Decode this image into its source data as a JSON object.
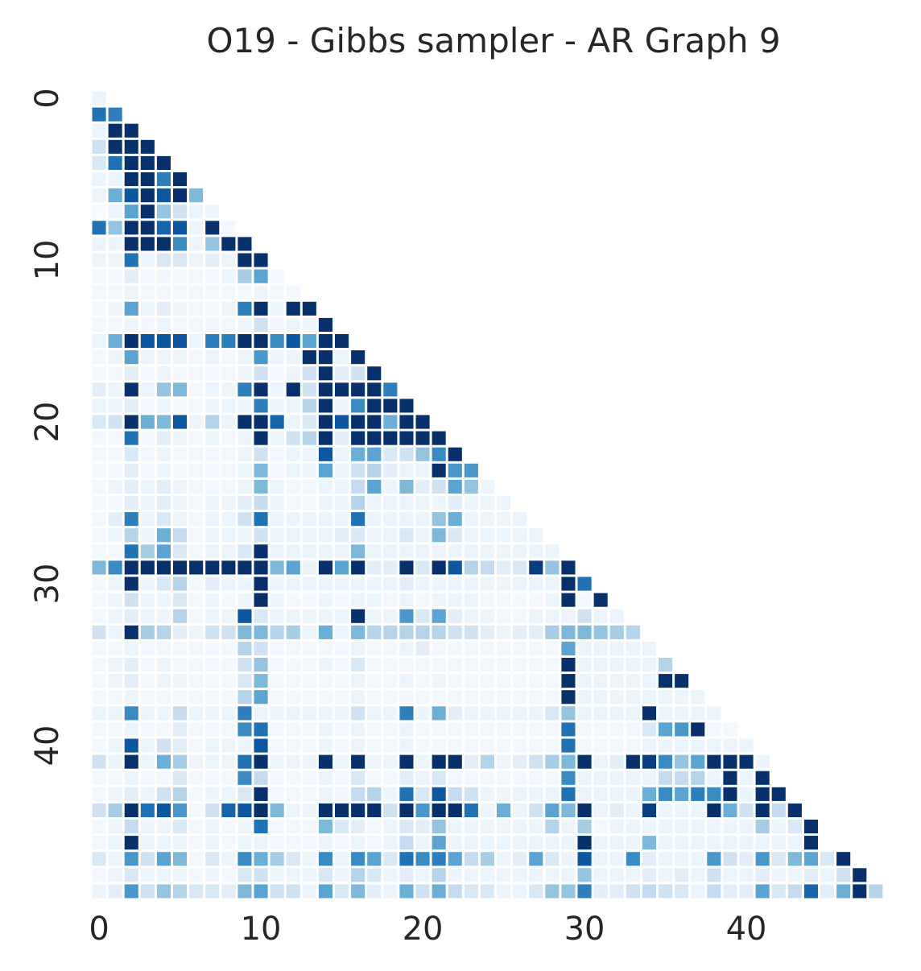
{
  "chart_data": {
    "type": "heatmap",
    "title": "O19 - Gibbs sampler - AR Graph 9",
    "xlabel": "",
    "ylabel": "",
    "n": 49,
    "mask": "upper-triangle",
    "x_ticks": [
      0,
      10,
      20,
      30,
      40
    ],
    "y_ticks": [
      0,
      10,
      20,
      30,
      40
    ],
    "colormap": "Blues",
    "value_range": [
      0,
      1
    ],
    "grid_line_color": "#ffffff",
    "rows": [
      [
        0.05
      ],
      [
        0.75,
        0.7
      ],
      [
        0.05,
        1.0,
        1.0
      ],
      [
        0.2,
        1.0,
        1.0,
        1.0
      ],
      [
        0.15,
        0.75,
        1.0,
        1.0,
        1.0
      ],
      [
        0.05,
        0.05,
        1.0,
        1.0,
        0.7,
        1.0
      ],
      [
        0.05,
        0.5,
        0.85,
        1.0,
        0.85,
        1.0,
        0.45
      ],
      [
        0.0,
        0.05,
        0.55,
        1.0,
        0.4,
        0.2,
        0.05,
        0.05
      ],
      [
        0.75,
        0.4,
        1.0,
        1.0,
        0.8,
        0.85,
        0.05,
        1.0,
        0.02
      ],
      [
        0.05,
        0.05,
        1.0,
        1.0,
        1.0,
        0.65,
        0.05,
        0.4,
        1.0,
        1.0
      ],
      [
        0.05,
        0.05,
        0.75,
        0.05,
        0.15,
        0.15,
        0.05,
        0.1,
        0.05,
        1.0,
        1.0
      ],
      [
        0.02,
        0.02,
        0.1,
        0.02,
        0.02,
        0.02,
        0.02,
        0.02,
        0.05,
        0.35,
        0.55,
        0.02
      ],
      [
        0.02,
        0.02,
        0.05,
        0.02,
        0.02,
        0.02,
        0.02,
        0.02,
        0.02,
        0.02,
        0.05,
        0.02,
        0.02
      ],
      [
        0.02,
        0.05,
        0.55,
        0.05,
        0.1,
        0.05,
        0.02,
        0.02,
        0.05,
        0.7,
        1.0,
        0.05,
        1.0,
        1.0
      ],
      [
        0.02,
        0.02,
        0.05,
        0.02,
        0.05,
        0.02,
        0.02,
        0.02,
        0.02,
        0.05,
        0.2,
        0.02,
        0.05,
        0.05,
        1.0
      ],
      [
        0.05,
        0.5,
        1.0,
        0.85,
        0.85,
        0.85,
        0.05,
        0.7,
        0.7,
        1.0,
        1.0,
        0.65,
        0.85,
        0.55,
        1.0,
        1.0
      ],
      [
        0.02,
        0.05,
        0.55,
        0.05,
        0.05,
        0.05,
        0.02,
        0.05,
        0.02,
        0.05,
        0.6,
        0.05,
        0.05,
        1.0,
        1.0,
        0.05,
        1.0
      ],
      [
        0.02,
        0.02,
        0.1,
        0.02,
        0.05,
        0.02,
        0.02,
        0.02,
        0.02,
        0.05,
        0.2,
        0.02,
        0.05,
        0.2,
        1.0,
        0.1,
        0.2,
        1.0
      ],
      [
        0.1,
        0.05,
        1.0,
        0.05,
        0.4,
        0.45,
        0.02,
        0.05,
        0.05,
        0.7,
        1.0,
        0.05,
        1.0,
        0.2,
        1.0,
        1.0,
        1.0,
        1.0,
        0.7
      ],
      [
        0.05,
        0.05,
        0.1,
        0.02,
        0.05,
        0.02,
        0.02,
        0.05,
        0.05,
        0.05,
        0.7,
        0.05,
        0.05,
        0.3,
        1.0,
        0.05,
        0.65,
        1.0,
        1.0,
        1.0
      ],
      [
        0.15,
        0.2,
        1.0,
        0.5,
        0.45,
        0.85,
        0.05,
        0.3,
        0.05,
        1.0,
        1.0,
        0.8,
        0.05,
        0.15,
        1.0,
        0.85,
        1.0,
        1.0,
        0.5,
        1.0,
        1.0
      ],
      [
        0.02,
        0.02,
        0.75,
        0.02,
        0.1,
        0.05,
        0.02,
        0.05,
        0.02,
        0.05,
        1.0,
        0.05,
        0.2,
        0.3,
        1.0,
        0.1,
        1.0,
        1.0,
        1.0,
        1.0,
        1.0,
        1.0
      ],
      [
        0.02,
        0.02,
        0.15,
        0.02,
        0.05,
        0.02,
        0.02,
        0.02,
        0.02,
        0.05,
        0.2,
        0.02,
        0.05,
        0.05,
        0.85,
        0.05,
        0.5,
        0.55,
        0.15,
        0.2,
        0.4,
        0.65,
        1.0
      ],
      [
        0.02,
        0.02,
        0.1,
        0.02,
        0.05,
        0.02,
        0.02,
        0.02,
        0.02,
        0.05,
        0.45,
        0.02,
        0.05,
        0.05,
        0.55,
        0.05,
        0.2,
        0.3,
        0.1,
        0.05,
        0.05,
        1.0,
        0.6,
        0.6
      ],
      [
        0.02,
        0.05,
        0.1,
        0.05,
        0.1,
        0.05,
        0.02,
        0.02,
        0.02,
        0.05,
        0.45,
        0.05,
        0.02,
        0.02,
        0.05,
        0.05,
        0.25,
        0.55,
        0.05,
        0.45,
        0.1,
        0.2,
        0.55,
        0.4,
        0.05
      ],
      [
        0.02,
        0.02,
        0.1,
        0.05,
        0.1,
        0.05,
        0.02,
        0.05,
        0.05,
        0.1,
        0.25,
        0.05,
        0.02,
        0.02,
        0.05,
        0.05,
        0.3,
        0.05,
        0.05,
        0.05,
        0.05,
        0.05,
        0.1,
        0.05,
        0.05,
        0.05
      ],
      [
        0.02,
        0.1,
        0.7,
        0.05,
        0.15,
        0.05,
        0.02,
        0.05,
        0.05,
        0.2,
        0.75,
        0.05,
        0.05,
        0.05,
        0.05,
        0.05,
        0.75,
        0.05,
        0.05,
        0.05,
        0.05,
        0.4,
        0.5,
        0.05,
        0.05,
        0.05,
        0.05
      ],
      [
        0.02,
        0.05,
        0.3,
        0.05,
        0.5,
        0.25,
        0.02,
        0.05,
        0.05,
        0.05,
        0.2,
        0.05,
        0.05,
        0.05,
        0.05,
        0.1,
        0.15,
        0.05,
        0.05,
        0.15,
        0.05,
        0.45,
        0.15,
        0.05,
        0.05,
        0.05,
        0.05,
        0.05
      ],
      [
        0.02,
        0.02,
        0.75,
        0.35,
        0.55,
        0.15,
        0.02,
        0.05,
        0.05,
        0.15,
        1.0,
        0.05,
        0.05,
        0.05,
        0.05,
        0.05,
        0.45,
        0.05,
        0.05,
        0.05,
        0.05,
        0.05,
        0.05,
        0.05,
        0.05,
        0.05,
        0.05,
        0.05,
        0.05
      ],
      [
        0.45,
        0.65,
        1.0,
        1.0,
        1.0,
        1.0,
        1.0,
        1.0,
        1.0,
        1.0,
        1.0,
        0.45,
        0.55,
        0.05,
        1.0,
        0.55,
        1.0,
        0.1,
        0.1,
        1.0,
        0.15,
        1.0,
        0.85,
        0.3,
        0.25,
        0.1,
        0.15,
        0.95,
        0.4,
        1.0
      ],
      [
        0.02,
        0.05,
        1.0,
        0.05,
        0.15,
        0.3,
        0.02,
        0.1,
        0.05,
        0.05,
        1.0,
        0.05,
        0.05,
        0.05,
        0.05,
        0.05,
        0.05,
        0.05,
        0.05,
        0.1,
        0.05,
        0.05,
        0.05,
        0.05,
        0.05,
        0.05,
        0.05,
        0.05,
        0.05,
        1.0,
        0.75
      ],
      [
        0.02,
        0.05,
        0.2,
        0.05,
        0.05,
        0.15,
        0.02,
        0.05,
        0.02,
        0.05,
        1.0,
        0.05,
        0.02,
        0.02,
        0.05,
        0.02,
        0.05,
        0.05,
        0.02,
        0.05,
        0.02,
        0.05,
        0.05,
        0.05,
        0.02,
        0.02,
        0.02,
        0.02,
        0.05,
        1.0,
        0.02,
        1.0
      ],
      [
        0.02,
        0.05,
        0.1,
        0.05,
        0.05,
        0.3,
        0.02,
        0.05,
        0.05,
        0.85,
        0.15,
        0.05,
        0.05,
        0.05,
        0.05,
        0.05,
        1.0,
        0.05,
        0.05,
        0.6,
        0.15,
        0.55,
        0.1,
        0.05,
        0.05,
        0.02,
        0.02,
        0.05,
        0.05,
        0.05,
        0.2,
        0.05,
        0.05
      ],
      [
        0.2,
        0.05,
        1.0,
        0.35,
        0.3,
        0.1,
        0.05,
        0.2,
        0.2,
        0.45,
        0.45,
        0.3,
        0.35,
        0.05,
        0.5,
        0.05,
        0.45,
        0.3,
        0.3,
        0.3,
        0.3,
        0.3,
        0.2,
        0.2,
        0.1,
        0.05,
        0.1,
        0.1,
        0.35,
        0.45,
        0.45,
        0.4,
        0.35,
        0.3
      ],
      [
        0.02,
        0.02,
        0.05,
        0.02,
        0.02,
        0.02,
        0.02,
        0.02,
        0.02,
        0.3,
        0.2,
        0.02,
        0.02,
        0.02,
        0.02,
        0.02,
        0.05,
        0.02,
        0.02,
        0.05,
        0.1,
        0.02,
        0.02,
        0.02,
        0.02,
        0.02,
        0.02,
        0.02,
        0.02,
        0.55,
        0.05,
        0.05,
        0.05,
        0.05,
        0.05
      ],
      [
        0.02,
        0.05,
        0.1,
        0.02,
        0.05,
        0.02,
        0.02,
        0.02,
        0.02,
        0.2,
        0.4,
        0.02,
        0.02,
        0.02,
        0.05,
        0.02,
        0.15,
        0.02,
        0.02,
        0.02,
        0.02,
        0.02,
        0.02,
        0.02,
        0.02,
        0.02,
        0.02,
        0.02,
        0.02,
        1.0,
        0.05,
        0.05,
        0.05,
        0.05,
        0.05,
        0.3
      ],
      [
        0.02,
        0.05,
        0.1,
        0.02,
        0.05,
        0.05,
        0.02,
        0.02,
        0.02,
        0.15,
        0.45,
        0.02,
        0.02,
        0.02,
        0.02,
        0.02,
        0.05,
        0.02,
        0.02,
        0.05,
        0.02,
        0.05,
        0.02,
        0.02,
        0.02,
        0.02,
        0.02,
        0.02,
        0.02,
        1.0,
        0.05,
        0.05,
        0.05,
        0.05,
        0.05,
        1.0,
        1.0
      ],
      [
        0.02,
        0.02,
        0.05,
        0.02,
        0.02,
        0.02,
        0.02,
        0.02,
        0.02,
        0.3,
        0.55,
        0.02,
        0.02,
        0.02,
        0.02,
        0.02,
        0.05,
        0.02,
        0.02,
        0.02,
        0.02,
        0.02,
        0.02,
        0.02,
        0.02,
        0.02,
        0.02,
        0.02,
        0.02,
        1.0,
        0.05,
        0.05,
        0.05,
        0.05,
        0.05,
        0.05,
        0.05,
        0.05
      ],
      [
        0.05,
        0.05,
        0.65,
        0.05,
        0.05,
        0.25,
        0.05,
        0.05,
        0.05,
        0.7,
        0.05,
        0.05,
        0.05,
        0.05,
        0.05,
        0.05,
        0.2,
        0.05,
        0.05,
        0.7,
        0.05,
        0.5,
        0.1,
        0.05,
        0.05,
        0.05,
        0.05,
        0.05,
        0.15,
        0.4,
        0.05,
        0.05,
        0.05,
        0.05,
        1.0,
        0.05,
        0.05,
        0.05,
        0.05
      ],
      [
        0.02,
        0.02,
        0.05,
        0.02,
        0.02,
        0.1,
        0.02,
        0.02,
        0.02,
        0.65,
        0.75,
        0.02,
        0.02,
        0.02,
        0.05,
        0.02,
        0.05,
        0.02,
        0.02,
        0.05,
        0.02,
        0.02,
        0.02,
        0.02,
        0.02,
        0.02,
        0.02,
        0.02,
        0.02,
        0.75,
        0.02,
        0.02,
        0.02,
        0.02,
        0.15,
        0.55,
        0.6,
        1.0,
        0.02,
        0.02
      ],
      [
        0.02,
        0.05,
        0.85,
        0.05,
        0.2,
        0.1,
        0.02,
        0.05,
        0.05,
        0.05,
        0.85,
        0.02,
        0.02,
        0.02,
        0.05,
        0.02,
        0.05,
        0.02,
        0.02,
        0.05,
        0.02,
        0.02,
        0.02,
        0.02,
        0.02,
        0.02,
        0.02,
        0.02,
        0.02,
        0.75,
        0.02,
        0.02,
        0.02,
        0.02,
        0.05,
        0.05,
        0.05,
        0.05,
        0.05,
        0.05,
        0.05
      ],
      [
        0.2,
        0.05,
        1.0,
        0.05,
        0.5,
        0.35,
        0.05,
        0.05,
        0.05,
        0.75,
        1.0,
        0.05,
        0.05,
        0.05,
        1.0,
        0.05,
        1.0,
        0.05,
        0.05,
        1.0,
        0.05,
        1.0,
        1.0,
        0.1,
        0.3,
        0.05,
        0.1,
        0.2,
        0.35,
        0.45,
        1.0,
        0.05,
        0.1,
        1.0,
        0.95,
        0.65,
        0.4,
        0.55,
        1.0,
        1.0,
        1.0,
        0.05
      ],
      [
        0.02,
        0.02,
        0.05,
        0.02,
        0.02,
        0.15,
        0.02,
        0.02,
        0.02,
        0.65,
        0.25,
        0.02,
        0.02,
        0.02,
        0.05,
        0.02,
        0.15,
        0.02,
        0.02,
        0.1,
        0.05,
        0.15,
        0.02,
        0.02,
        0.02,
        0.02,
        0.02,
        0.02,
        0.02,
        0.65,
        0.05,
        0.05,
        0.05,
        0.05,
        0.05,
        0.25,
        0.25,
        0.3,
        0.05,
        1.0,
        0.05,
        1.0
      ],
      [
        0.02,
        0.05,
        0.1,
        0.05,
        0.2,
        0.3,
        0.02,
        0.05,
        0.05,
        0.15,
        1.0,
        0.02,
        0.02,
        0.02,
        0.05,
        0.02,
        0.25,
        0.3,
        0.05,
        0.75,
        0.15,
        0.85,
        0.25,
        0.2,
        0.05,
        0.05,
        0.05,
        0.05,
        0.05,
        0.75,
        0.05,
        0.05,
        0.05,
        0.05,
        0.5,
        0.65,
        0.55,
        0.7,
        0.65,
        1.0,
        0.05,
        1.0,
        1.0
      ],
      [
        0.2,
        0.35,
        1.0,
        0.75,
        0.85,
        0.6,
        0.02,
        0.2,
        0.8,
        0.85,
        1.0,
        0.45,
        0.05,
        0.05,
        1.0,
        1.0,
        1.0,
        1.0,
        0.2,
        1.0,
        0.6,
        1.0,
        1.0,
        0.75,
        0.05,
        0.5,
        0.05,
        0.2,
        0.55,
        0.45,
        1.0,
        0.05,
        0.1,
        0.05,
        0.95,
        0.05,
        0.05,
        0.05,
        1.0,
        0.5,
        0.2,
        1.0,
        0.25,
        1.0
      ],
      [
        0.02,
        0.05,
        0.25,
        0.05,
        0.05,
        0.15,
        0.02,
        0.05,
        0.02,
        0.05,
        0.75,
        0.02,
        0.02,
        0.02,
        0.45,
        0.15,
        0.1,
        0.02,
        0.05,
        0.15,
        0.1,
        0.4,
        0.05,
        0.05,
        0.05,
        0.05,
        0.05,
        0.05,
        0.3,
        0.05,
        0.35,
        0.02,
        0.05,
        0.05,
        0.05,
        0.05,
        0.05,
        0.05,
        0.05,
        0.05,
        0.05,
        0.35,
        0.05,
        0.15,
        1.0
      ],
      [
        0.02,
        0.05,
        1.0,
        0.05,
        0.05,
        0.05,
        0.02,
        0.05,
        0.02,
        0.05,
        0.05,
        0.02,
        0.02,
        0.02,
        0.05,
        0.02,
        0.05,
        0.02,
        0.05,
        0.25,
        0.05,
        0.55,
        0.05,
        0.05,
        0.05,
        0.05,
        0.05,
        0.05,
        0.05,
        0.05,
        1.0,
        0.05,
        0.05,
        0.05,
        0.45,
        0.05,
        0.05,
        0.05,
        0.05,
        0.05,
        0.05,
        0.05,
        0.05,
        0.05,
        1.0
      ],
      [
        0.15,
        0.05,
        0.6,
        0.2,
        0.55,
        0.45,
        0.02,
        0.15,
        0.05,
        0.65,
        0.5,
        0.35,
        0.15,
        0.05,
        0.65,
        0.05,
        0.65,
        0.55,
        0.15,
        0.75,
        0.65,
        0.7,
        0.55,
        0.25,
        0.35,
        0.05,
        0.1,
        0.55,
        0.15,
        0.05,
        0.85,
        0.05,
        0.05,
        0.65,
        0.1,
        0.05,
        0.05,
        0.05,
        0.6,
        0.2,
        0.1,
        0.6,
        0.15,
        0.45,
        0.55,
        0.15,
        1.0
      ],
      [
        0.02,
        0.05,
        0.15,
        0.05,
        0.05,
        0.05,
        0.02,
        0.05,
        0.02,
        0.15,
        0.2,
        0.05,
        0.05,
        0.05,
        0.15,
        0.05,
        0.3,
        0.15,
        0.05,
        0.1,
        0.05,
        0.3,
        0.05,
        0.05,
        0.05,
        0.05,
        0.05,
        0.05,
        0.05,
        0.05,
        0.4,
        0.05,
        0.05,
        0.05,
        0.1,
        0.05,
        0.1,
        0.05,
        0.2,
        0.05,
        0.05,
        0.1,
        0.05,
        0.05,
        0.1,
        0.05,
        0.2,
        1.0
      ],
      [
        0.05,
        0.1,
        0.6,
        0.2,
        0.4,
        0.3,
        0.15,
        0.15,
        0.1,
        0.45,
        0.55,
        0.2,
        0.2,
        0.05,
        0.55,
        0.15,
        0.45,
        0.1,
        0.05,
        0.5,
        0.2,
        0.5,
        0.25,
        0.15,
        0.15,
        0.05,
        0.05,
        0.15,
        0.4,
        0.4,
        0.7,
        0.1,
        0.1,
        0.2,
        0.25,
        0.2,
        0.15,
        0.05,
        0.25,
        0.1,
        0.1,
        0.55,
        0.15,
        0.25,
        0.8,
        0.1,
        0.5,
        1.0,
        0.3
      ]
    ]
  }
}
